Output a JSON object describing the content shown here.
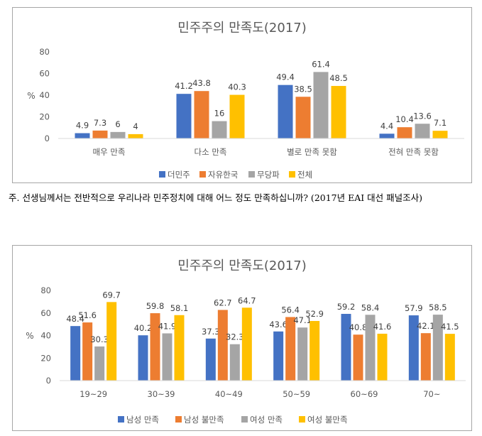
{
  "note": "주. 선생님께서는 전반적으로 우리나라 민주정치에 대해 어느 정도 만족하십니까? (2017년 EAI 대선 패널조사)",
  "chart_data": [
    {
      "type": "bar",
      "title": "민주주의 만족도(2017)",
      "ylabel": "%",
      "ylim": [
        0,
        80
      ],
      "yticks": [
        0,
        20,
        40,
        60,
        80
      ],
      "grid": false,
      "legend_position": "bottom",
      "categories": [
        "매우 만족",
        "다소 만족",
        "별로 만족 못함",
        "전혀 만족 못함"
      ],
      "series": [
        {
          "name": "더민주",
          "color": "#4472C4",
          "values": [
            4.9,
            41.2,
            49.4,
            4.4
          ]
        },
        {
          "name": "자유한국",
          "color": "#ED7D31",
          "values": [
            7.3,
            43.8,
            38.5,
            10.4
          ]
        },
        {
          "name": "무당파",
          "color": "#A5A5A5",
          "values": [
            6,
            16,
            61.4,
            13.6
          ]
        },
        {
          "name": "전체",
          "color": "#FFC000",
          "values": [
            4,
            40.3,
            48.5,
            7.1
          ]
        }
      ]
    },
    {
      "type": "bar",
      "title": "민주주의 만족도(2017)",
      "ylabel": "%",
      "ylim": [
        0,
        80
      ],
      "yticks": [
        0,
        20,
        40,
        60,
        80
      ],
      "grid": false,
      "legend_position": "bottom",
      "categories": [
        "19~29",
        "30~39",
        "40~49",
        "50~59",
        "60~69",
        "70~"
      ],
      "series": [
        {
          "name": "남성 만족",
          "color": "#4472C4",
          "values": [
            48.4,
            40.2,
            37.3,
            43.6,
            59.2,
            57.9
          ]
        },
        {
          "name": "남성 불만족",
          "color": "#ED7D31",
          "values": [
            51.6,
            59.8,
            62.7,
            56.4,
            40.8,
            42.1
          ]
        },
        {
          "name": "여성 만족",
          "color": "#A5A5A5",
          "values": [
            30.3,
            41.9,
            32.3,
            47.1,
            58.4,
            58.5
          ]
        },
        {
          "name": "여성 불만족",
          "color": "#FFC000",
          "values": [
            69.7,
            58.1,
            64.7,
            52.9,
            41.6,
            41.5
          ]
        }
      ]
    }
  ]
}
